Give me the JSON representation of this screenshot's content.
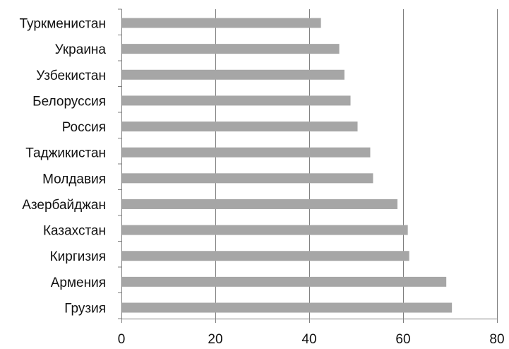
{
  "chart_data": {
    "type": "bar",
    "orientation": "horizontal",
    "title": "",
    "xlabel": "",
    "ylabel": "",
    "categories": [
      "Туркменистан",
      "Украина",
      "Узбекистан",
      "Белоруссия",
      "Россия",
      "Таджикистан",
      "Молдавия",
      "Азербайджан",
      "Казахстан",
      "Киргизия",
      "Армения",
      "Грузия"
    ],
    "values": [
      42.5,
      46.4,
      47.5,
      48.8,
      50.3,
      53.0,
      53.6,
      58.8,
      61.0,
      61.3,
      69.2,
      70.4
    ],
    "xlim": [
      0,
      80
    ],
    "xticks": [
      0,
      20,
      40,
      60,
      80
    ],
    "grid": "vertical",
    "legend": "none",
    "colors": {
      "bar": "#a6a6a6",
      "grid": "#7f7f7f",
      "axis": "#7f7f7f",
      "text": "#111111"
    }
  }
}
